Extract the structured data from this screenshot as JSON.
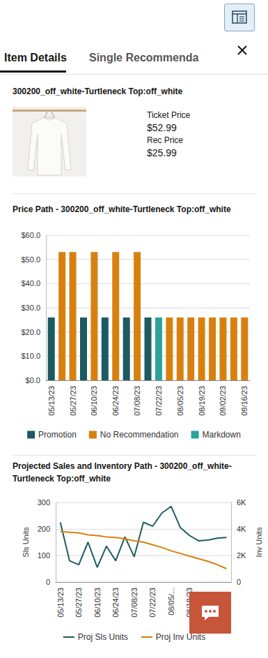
{
  "header": {
    "tabs": [
      "Item Details",
      "Single Recommenda"
    ]
  },
  "item": {
    "title": "300200_off_white-Turtleneck Top:off_white",
    "fields": [
      {
        "label": "Ticket Price",
        "value": "$52.99"
      },
      {
        "label": "Rec Price",
        "value": "$25.99"
      }
    ]
  },
  "chart_data": [
    {
      "type": "bar",
      "title": "Price Path  -  300200_off_white-Turtleneck Top:off_white",
      "categories": [
        "05/13/23",
        null,
        "05/27/23",
        null,
        "06/10/23",
        null,
        "06/24/23",
        null,
        "07/08/23",
        null,
        "07/22/23",
        null,
        "08/05/23",
        null,
        "08/19/23",
        null,
        "09/02/23",
        null,
        "09/16/23"
      ],
      "series": [
        {
          "name": "Promotion",
          "color": "#1d5a62",
          "values": [
            25.99,
            null,
            null,
            25.99,
            null,
            25.99,
            null,
            25.99,
            null,
            25.99,
            null,
            null,
            null,
            null,
            null,
            null,
            null,
            null,
            null
          ]
        },
        {
          "name": "No Recommendation",
          "color": "#d8800f",
          "values": [
            null,
            52.99,
            52.99,
            null,
            52.99,
            null,
            52.99,
            null,
            52.99,
            null,
            null,
            25.99,
            25.99,
            25.99,
            25.99,
            25.99,
            25.99,
            25.99,
            25.99
          ]
        },
        {
          "name": "Markdown",
          "color": "#2ba39b",
          "values": [
            null,
            null,
            null,
            null,
            null,
            null,
            null,
            null,
            null,
            null,
            25.99,
            null,
            null,
            null,
            null,
            null,
            null,
            null,
            null
          ]
        }
      ],
      "ylim": [
        0,
        60
      ],
      "yticks": [
        {
          "value": 0,
          "label": "$0.0"
        },
        {
          "value": 10,
          "label": "$10.0"
        },
        {
          "value": 20,
          "label": "$20.0"
        },
        {
          "value": 30,
          "label": "$30.0"
        },
        {
          "value": 40,
          "label": "$40.0"
        },
        {
          "value": 50,
          "label": "$50.0"
        },
        {
          "value": 60,
          "label": "$60.0"
        }
      ],
      "grid": true,
      "legend": "bottom"
    },
    {
      "type": "line",
      "title": "Projected Sales and Inventory Path  -  300200_off_white-Turtleneck Top:off_white",
      "categories": [
        "05/13/23",
        null,
        "05/27/23",
        null,
        "06/10/23",
        null,
        "06/24/23",
        null,
        "07/08/23",
        null,
        "07/22/23",
        null,
        "08/05/...",
        null,
        "08/19/23",
        null,
        null,
        null,
        null
      ],
      "ylabel": "Sls Units",
      "y2label": "Inv Units",
      "series": [
        {
          "name": "Proj Sls Units",
          "color": "#1e5c5e",
          "values": [
            225,
            80,
            65,
            150,
            55,
            135,
            80,
            170,
            95,
            225,
            210,
            260,
            285,
            205,
            175,
            155,
            158,
            165,
            168
          ]
        },
        {
          "name": "Proj Inv Units",
          "color": "#d8800f",
          "axis": "y2",
          "values": [
            3800,
            3750,
            3700,
            3550,
            3500,
            3400,
            3350,
            3250,
            3100,
            3000,
            2800,
            2600,
            2350,
            2150,
            1950,
            1750,
            1550,
            1300,
            1000
          ]
        }
      ],
      "ylim": [
        0,
        300
      ],
      "yticks": [
        0,
        100,
        200,
        300
      ],
      "y2lim": [
        0,
        6000
      ],
      "y2ticks": [
        0,
        {
          "value": 2000,
          "label": "2K"
        },
        {
          "value": 4000,
          "label": "4K"
        },
        {
          "value": 6000,
          "label": "6K"
        }
      ],
      "grid": true,
      "legend": "bottom"
    }
  ]
}
